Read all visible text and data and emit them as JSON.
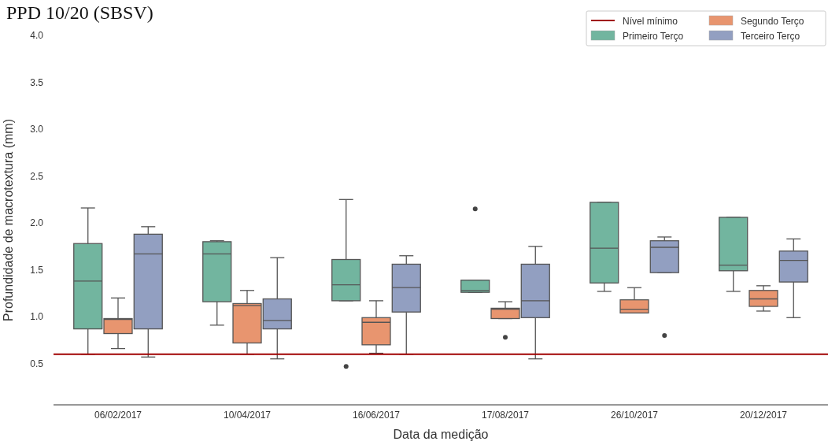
{
  "chart_data": {
    "type": "box",
    "title": "PPD 10/20 (SBSV)",
    "xlabel": "Data da medição",
    "ylabel": "Profundidade de macrotextura (mm)",
    "categories": [
      "06/02/2017",
      "10/04/2017",
      "16/06/2017",
      "17/08/2017",
      "26/10/2017",
      "20/12/2017"
    ],
    "series": [
      {
        "name": "Primeiro Terço",
        "color": "#72b59f",
        "boxes": [
          {
            "low": 0.6,
            "q1": 0.87,
            "median": 1.38,
            "q3": 1.78,
            "high": 2.16
          },
          {
            "low": 0.91,
            "q1": 1.16,
            "median": 1.67,
            "q3": 1.8,
            "high": 1.81
          },
          {
            "low": 1.17,
            "q1": 1.17,
            "median": 1.34,
            "q3": 1.61,
            "high": 2.25,
            "outliers": [
              0.47
            ]
          },
          {
            "low": 1.26,
            "q1": 1.26,
            "median": 1.28,
            "q3": 1.39,
            "high": 1.39,
            "outliers": [
              2.15
            ]
          },
          {
            "low": 1.27,
            "q1": 1.36,
            "median": 1.73,
            "q3": 2.22,
            "high": 2.22
          },
          {
            "low": 1.27,
            "q1": 1.49,
            "median": 1.55,
            "q3": 2.06,
            "high": 2.06
          }
        ]
      },
      {
        "name": "Segundo Terço",
        "color": "#e8956f",
        "boxes": [
          {
            "low": 0.66,
            "q1": 0.82,
            "median": 0.97,
            "q3": 0.98,
            "high": 1.2
          },
          {
            "low": 0.6,
            "q1": 0.72,
            "median": 1.12,
            "q3": 1.14,
            "high": 1.28
          },
          {
            "low": 0.61,
            "q1": 0.7,
            "median": 0.94,
            "q3": 0.99,
            "high": 1.17
          },
          {
            "low": 0.98,
            "q1": 0.98,
            "median": 1.08,
            "q3": 1.09,
            "high": 1.16,
            "outliers": [
              0.78
            ]
          },
          {
            "low": 1.04,
            "q1": 1.04,
            "median": 1.08,
            "q3": 1.18,
            "high": 1.31
          },
          {
            "low": 1.06,
            "q1": 1.11,
            "median": 1.19,
            "q3": 1.28,
            "high": 1.33
          }
        ]
      },
      {
        "name": "Terceiro Terço",
        "color": "#929fc1",
        "boxes": [
          {
            "low": 0.57,
            "q1": 0.87,
            "median": 1.67,
            "q3": 1.88,
            "high": 1.96
          },
          {
            "low": 0.55,
            "q1": 0.87,
            "median": 0.96,
            "q3": 1.19,
            "high": 1.63
          },
          {
            "low": 0.6,
            "q1": 1.05,
            "median": 1.31,
            "q3": 1.56,
            "high": 1.65
          },
          {
            "low": 0.55,
            "q1": 0.99,
            "median": 1.17,
            "q3": 1.56,
            "high": 1.75
          },
          {
            "low": 1.47,
            "q1": 1.47,
            "median": 1.74,
            "q3": 1.81,
            "high": 1.85,
            "outliers": [
              0.8
            ]
          },
          {
            "low": 0.99,
            "q1": 1.37,
            "median": 1.6,
            "q3": 1.7,
            "high": 1.83
          }
        ]
      }
    ],
    "ref_lines": [
      {
        "axis": "y",
        "value": 0.6,
        "label": "Nível mínimo",
        "color": "#a00000"
      }
    ],
    "ylim": [
      0.06,
      4.0
    ],
    "yticks": [
      0.5,
      {
        "value": 1,
        "label": "1.0"
      },
      1.5,
      {
        "value": 2,
        "label": "2.0"
      },
      2.5,
      {
        "value": 3,
        "label": "3.0"
      },
      3.5,
      {
        "value": 4,
        "label": "4.0"
      }
    ],
    "legend": "top right",
    "grid": false
  }
}
